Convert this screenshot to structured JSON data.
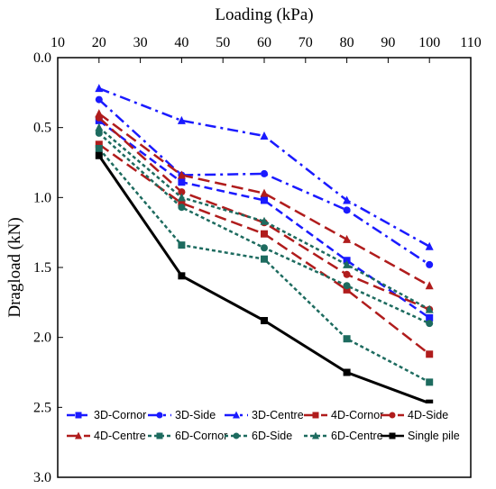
{
  "chart_data": {
    "type": "line",
    "title": "",
    "xlabel": "Loading (kPa)",
    "ylabel": "Dragload (kN)",
    "xlim": [
      10,
      110
    ],
    "ylim": [
      0.0,
      3.0
    ],
    "y_inverted": true,
    "x_axis_position": "top",
    "xticks": [
      "10",
      "20",
      "30",
      "40",
      "50",
      "60",
      "70",
      "80",
      "90",
      "100",
      "110"
    ],
    "yticks": [
      "0.0",
      "0.5",
      "1.0",
      "1.5",
      "2.0",
      "2.5",
      "3.0"
    ],
    "grid": false,
    "legend_position": "bottom-inside",
    "x": [
      20,
      40,
      60,
      80,
      100
    ],
    "series": [
      {
        "name": "3D-Cornor",
        "color": "#1a1aff",
        "dash": "dash",
        "marker": "square",
        "values": [
          0.45,
          0.89,
          1.02,
          1.45,
          1.86
        ]
      },
      {
        "name": "3D-Side",
        "color": "#1a1aff",
        "dash": "dashdot",
        "marker": "circle",
        "values": [
          0.3,
          0.84,
          0.83,
          1.09,
          1.48
        ]
      },
      {
        "name": "3D-Centre",
        "color": "#1a1aff",
        "dash": "dashdot",
        "marker": "triangle",
        "values": [
          0.22,
          0.45,
          0.56,
          1.02,
          1.35
        ]
      },
      {
        "name": "4D-Cornor",
        "color": "#b01c1c",
        "dash": "longdash",
        "marker": "square",
        "values": [
          0.62,
          1.04,
          1.26,
          1.66,
          2.12
        ]
      },
      {
        "name": "4D-Side",
        "color": "#b01c1c",
        "dash": "longdash",
        "marker": "circle",
        "values": [
          0.43,
          0.96,
          1.18,
          1.55,
          1.8
        ]
      },
      {
        "name": "4D-Centre",
        "color": "#b01c1c",
        "dash": "longdash",
        "marker": "triangle",
        "values": [
          0.4,
          0.84,
          0.97,
          1.3,
          1.63
        ]
      },
      {
        "name": "6D-Cornor",
        "color": "#1d6b5f",
        "dash": "dot",
        "marker": "square",
        "values": [
          0.65,
          1.34,
          1.44,
          2.01,
          2.32
        ]
      },
      {
        "name": "6D-Side",
        "color": "#1d6b5f",
        "dash": "dot",
        "marker": "circle",
        "values": [
          0.54,
          1.07,
          1.36,
          1.63,
          1.9
        ]
      },
      {
        "name": "6D-Centre",
        "color": "#1d6b5f",
        "dash": "dot",
        "marker": "triangle",
        "values": [
          0.5,
          1.0,
          1.17,
          1.48,
          1.8
        ]
      },
      {
        "name": "Single pile",
        "color": "#000000",
        "dash": "solid",
        "marker": "square",
        "values": [
          0.7,
          1.56,
          1.88,
          2.25,
          2.47
        ]
      }
    ]
  }
}
